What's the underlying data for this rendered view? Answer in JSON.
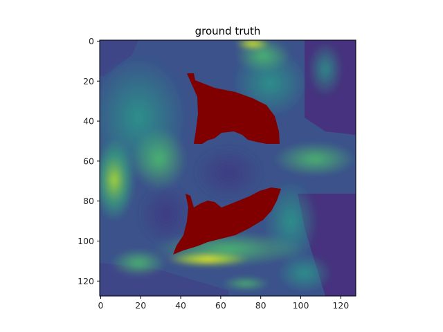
{
  "title": "ground truth",
  "colormap": "viridis",
  "overlay_color": "#800000",
  "image_size": [
    128,
    128
  ],
  "xaxis": {
    "ticks": [
      "0",
      "20",
      "40",
      "60",
      "80",
      "100",
      "120"
    ]
  },
  "yaxis": {
    "ticks": [
      "0",
      "20",
      "40",
      "60",
      "80",
      "100",
      "120"
    ]
  },
  "image": {
    "description_semantic": "MRI slice in viridis colormap with two dark-red ground-truth segmentation masks",
    "masks": [
      {
        "name": "upper-mask",
        "color": "#800000"
      },
      {
        "name": "lower-mask",
        "color": "#800000"
      }
    ]
  }
}
